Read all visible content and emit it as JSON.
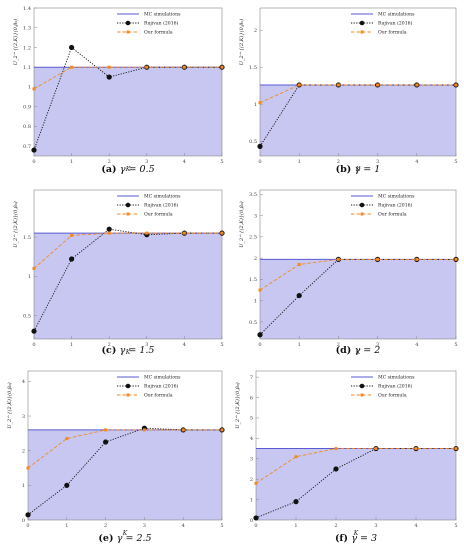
{
  "legend": {
    "mc": "MC simulations",
    "rujivan": "Rujivan (2016)",
    "ours": "Our formula"
  },
  "colors": {
    "fill": "#c7c7f2",
    "mc_line": "#5a5ad2",
    "rujivan": "#111111",
    "ours": "#f08a24",
    "axis": "#888888"
  },
  "chart_data": [
    {
      "type": "line",
      "caption_label": "(a)",
      "caption_text": "γ = 0.5",
      "xlabel": "K",
      "ylabel": "U_2^{(2,K)}(0,β₀)",
      "x": [
        0,
        1,
        2,
        3,
        4,
        5
      ],
      "xlim": [
        0,
        5
      ],
      "ylim": [
        0.65,
        1.4
      ],
      "yticks": [
        0.7,
        0.8,
        0.9,
        1.0,
        1.1,
        1.2,
        1.3,
        1.4
      ],
      "mc_value": 1.1,
      "series": [
        {
          "name": "Rujivan (2016)",
          "values": [
            0.68,
            1.2,
            1.05,
            1.1,
            1.1,
            1.1
          ]
        },
        {
          "name": "Our formula",
          "values": [
            0.99,
            1.1,
            1.1,
            1.1,
            1.1,
            1.1
          ]
        }
      ]
    },
    {
      "type": "line",
      "caption_label": "(b)",
      "caption_text": "γ = 1",
      "xlabel": "K",
      "ylabel": "U_2^{(2,K)}(0,β₀)",
      "x": [
        0,
        1,
        2,
        3,
        4,
        5
      ],
      "xlim": [
        0,
        5
      ],
      "ylim": [
        0.3,
        2.3
      ],
      "yticks": [
        0.5,
        1.0,
        1.5,
        2.0
      ],
      "mc_value": 1.26,
      "series": [
        {
          "name": "Rujivan (2016)",
          "values": [
            0.43,
            1.26,
            1.26,
            1.26,
            1.26,
            1.26
          ]
        },
        {
          "name": "Our formula",
          "values": [
            1.02,
            1.26,
            1.26,
            1.26,
            1.26,
            1.26
          ]
        }
      ]
    },
    {
      "type": "line",
      "caption_label": "(c)",
      "caption_text": "γ = 1.5",
      "xlabel": "K",
      "ylabel": "U_2^{(2,K)}(0,β₀)",
      "x": [
        0,
        1,
        2,
        3,
        4,
        5
      ],
      "xlim": [
        0,
        5
      ],
      "ylim": [
        0.2,
        2.1
      ],
      "yticks": [
        0.5,
        1.0,
        1.5
      ],
      "mc_value": 1.55,
      "series": [
        {
          "name": "Rujivan (2016)",
          "values": [
            0.3,
            1.22,
            1.6,
            1.53,
            1.55,
            1.55
          ]
        },
        {
          "name": "Our formula",
          "values": [
            1.1,
            1.52,
            1.55,
            1.55,
            1.55,
            1.55
          ]
        }
      ]
    },
    {
      "type": "line",
      "caption_label": "(d)",
      "caption_text": "γ = 2",
      "xlabel": "K",
      "ylabel": "U_2^{(2,K)}(0,β₀)",
      "x": [
        0,
        1,
        2,
        3,
        4,
        5
      ],
      "xlim": [
        0,
        5
      ],
      "ylim": [
        0.1,
        3.6
      ],
      "yticks": [
        0.5,
        1.0,
        1.5,
        2.0,
        2.5,
        3.0,
        3.5
      ],
      "mc_value": 1.97,
      "series": [
        {
          "name": "Rujivan (2016)",
          "values": [
            0.2,
            1.12,
            1.97,
            1.97,
            1.97,
            1.97
          ]
        },
        {
          "name": "Our formula",
          "values": [
            1.25,
            1.85,
            1.97,
            1.97,
            1.97,
            1.97
          ]
        }
      ]
    },
    {
      "type": "line",
      "caption_label": "(e)",
      "caption_text": "γ = 2.5",
      "xlabel": "K",
      "ylabel": "U_2^{(2,K)}(0,β₀)",
      "x": [
        0,
        1,
        2,
        3,
        4,
        5
      ],
      "xlim": [
        0,
        5
      ],
      "ylim": [
        0,
        4.3
      ],
      "yticks": [
        0,
        1,
        2,
        3,
        4
      ],
      "mc_value": 2.6,
      "series": [
        {
          "name": "Rujivan (2016)",
          "values": [
            0.15,
            1.0,
            2.25,
            2.65,
            2.6,
            2.6
          ]
        },
        {
          "name": "Our formula",
          "values": [
            1.5,
            2.35,
            2.6,
            2.6,
            2.6,
            2.6
          ]
        }
      ]
    },
    {
      "type": "line",
      "caption_label": "(f)",
      "caption_text": "γ = 3",
      "xlabel": "K",
      "ylabel": "U_2^{(2,K)}(0,β₀)",
      "x": [
        0,
        1,
        2,
        3,
        4,
        5
      ],
      "xlim": [
        0,
        5
      ],
      "ylim": [
        0,
        7.3
      ],
      "yticks": [
        0,
        1,
        2,
        3,
        4,
        5,
        6,
        7
      ],
      "mc_value": 3.5,
      "series": [
        {
          "name": "Rujivan (2016)",
          "values": [
            0.1,
            0.9,
            2.5,
            3.5,
            3.5,
            3.5
          ]
        },
        {
          "name": "Our formula",
          "values": [
            1.8,
            3.1,
            3.5,
            3.5,
            3.5,
            3.5
          ]
        }
      ]
    }
  ]
}
